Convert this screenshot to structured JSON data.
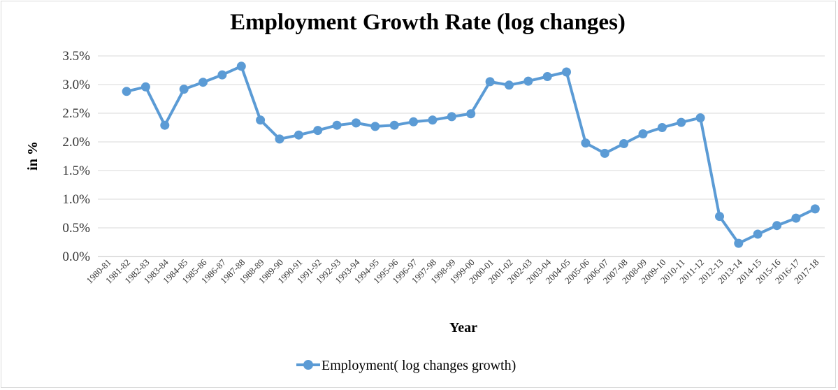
{
  "chart_data": {
    "type": "line",
    "title": "Employment Growth Rate (log changes)",
    "xlabel": "Year",
    "ylabel": "in %",
    "ylim": [
      0,
      3.5
    ],
    "yticks": [
      "0.0%",
      "0.5%",
      "1.0%",
      "1.5%",
      "2.0%",
      "2.5%",
      "3.0%",
      "3.5%"
    ],
    "ytick_values": [
      0,
      0.5,
      1.0,
      1.5,
      2.0,
      2.5,
      3.0,
      3.5
    ],
    "grid": true,
    "legend_position": "bottom",
    "categories": [
      "1980-81",
      "1981-82",
      "1982-83",
      "1983-84",
      "1984-85",
      "1985-86",
      "1986-87",
      "1987-88",
      "1988-89",
      "1989-90",
      "1990-91",
      "1991-92",
      "1992-93",
      "1993-94",
      "1994-95",
      "1995-96",
      "1996-97",
      "1997-98",
      "1998-99",
      "1999-00",
      "2000-01",
      "2001-02",
      "2002-03",
      "2003-04",
      "2004-05",
      "2005-06",
      "2006-07",
      "2007-08",
      "2008-09",
      "2009-10",
      "2010-11",
      "2011-12",
      "2012-13",
      "2013-14",
      "2014-15",
      "2015-16",
      "2016-17",
      "2017-18"
    ],
    "series": [
      {
        "name": "Employment( log changes growth)",
        "color": "#5b9bd5",
        "values": [
          null,
          2.88,
          2.96,
          2.29,
          2.92,
          3.04,
          3.17,
          3.32,
          2.38,
          2.05,
          2.12,
          2.2,
          2.29,
          2.33,
          2.27,
          2.29,
          2.35,
          2.38,
          2.44,
          2.49,
          3.05,
          2.99,
          3.06,
          3.14,
          3.22,
          1.98,
          1.8,
          1.97,
          2.14,
          2.25,
          2.34,
          2.42,
          0.7,
          0.23,
          0.39,
          0.54,
          0.67,
          0.83
        ]
      }
    ]
  }
}
